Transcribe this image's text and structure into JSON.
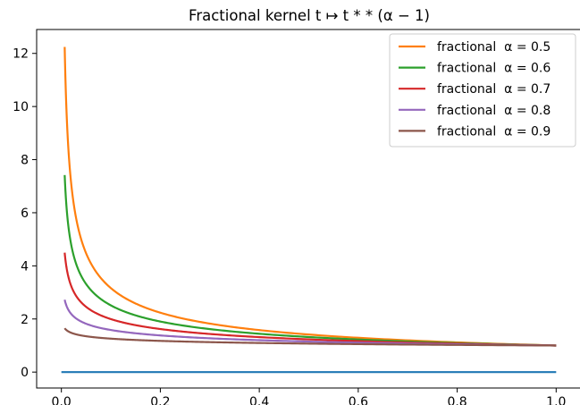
{
  "chart_data": {
    "type": "line",
    "title": "Fractional kernel t ↦ t * * (α − 1)",
    "xlabel": "",
    "ylabel": "",
    "xlim": [
      -0.05,
      1.05
    ],
    "ylim": [
      -0.6,
      12.9
    ],
    "x_ticks": [
      "0.0",
      "0.2",
      "0.4",
      "0.6",
      "0.8",
      "1.0"
    ],
    "y_ticks": [
      "0",
      "2",
      "4",
      "6",
      "8",
      "10",
      "12"
    ],
    "legend_position": "top-right",
    "grid": false,
    "series": [
      {
        "name": "",
        "color": "#1f77b4",
        "kind": "constant",
        "x_range": [
          0.0,
          1.0
        ],
        "value": 0
      },
      {
        "name": "fractional  α = 0.5",
        "color": "#ff7f0e",
        "kind": "power",
        "alpha": 0.5,
        "x_range": [
          0.00667,
          1.0
        ]
      },
      {
        "name": "fractional  α = 0.6",
        "color": "#2ca02c",
        "kind": "power",
        "alpha": 0.6,
        "x_range": [
          0.00667,
          1.0
        ]
      },
      {
        "name": "fractional  α = 0.7",
        "color": "#d62728",
        "kind": "power",
        "alpha": 0.7,
        "x_range": [
          0.00667,
          1.0
        ]
      },
      {
        "name": "fractional  α = 0.8",
        "color": "#9467bd",
        "kind": "power",
        "alpha": 0.8,
        "x_range": [
          0.00667,
          1.0
        ]
      },
      {
        "name": "fractional  α = 0.9",
        "color": "#8c564b",
        "kind": "power",
        "alpha": 0.9,
        "x_range": [
          0.00667,
          1.0
        ]
      }
    ]
  }
}
